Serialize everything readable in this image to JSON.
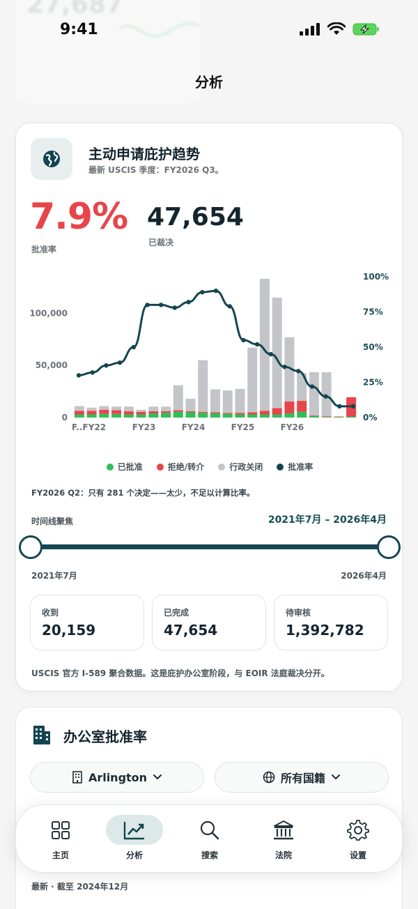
{
  "status_bar": {
    "time": "9:41"
  },
  "page_title": "分析",
  "trend_card": {
    "title": "主动申请庇护趋势",
    "subtitle": "最新 USCIS 季度：FY2026 Q3。",
    "approval_rate": "7.9%",
    "approval_rate_label": "批准率",
    "decided_count": "47,654",
    "decided_label": "已裁决",
    "note": "FY2026 Q2：只有 281 个决定——太少，不足以计算比率。",
    "timeline_label": "时间线聚焦",
    "timeline_range": "2021年7月 – 2026年4月",
    "slider_start": "2021年7月",
    "slider_end": "2026年4月",
    "stats": [
      {
        "label": "收到",
        "value": "20,159"
      },
      {
        "label": "已完成",
        "value": "47,654"
      },
      {
        "label": "待审核",
        "value": "1,392,782"
      }
    ],
    "footnote": "USCIS 官方 I-589 聚合数据。这是庇护办公室阶段，与 EOIR 法庭裁决分开。"
  },
  "chart_data": {
    "type": "bar",
    "x_tick_labels": [
      "F..FY22",
      "FY23",
      "FY24",
      "FY25",
      "FY26"
    ],
    "y_left_ticks": [
      "0",
      "50,000",
      "100,000"
    ],
    "y_right_ticks": [
      "0%",
      "25%",
      "50%",
      "75%",
      "100%"
    ],
    "ylim_left": [
      0,
      135000
    ],
    "ylim_right": [
      0,
      100
    ],
    "legend": [
      "已批准",
      "拒绝/转介",
      "行政关闭",
      "批准率"
    ],
    "colors": {
      "approved": "#2fbf57",
      "denied": "#e8454a",
      "closed": "#c3c5c8",
      "rate": "#14454f"
    },
    "series": [
      {
        "name": "已批准",
        "values": [
          3000,
          3000,
          3500,
          3500,
          3000,
          3000,
          4000,
          4500,
          5500,
          5000,
          4500,
          4000,
          3500,
          3000,
          3000,
          3000,
          3000,
          4000,
          5500,
          1500,
          500,
          500,
          1000
        ]
      },
      {
        "name": "拒绝/转介",
        "values": [
          3500,
          3500,
          4000,
          3500,
          3000,
          2500,
          2000,
          1500,
          1500,
          1000,
          1000,
          1000,
          1000,
          1500,
          2000,
          3500,
          6000,
          11500,
          10500,
          500,
          500,
          500,
          18500
        ]
      },
      {
        "name": "行政关闭",
        "values": [
          4500,
          3000,
          3500,
          3500,
          4500,
          2000,
          4500,
          4500,
          24000,
          12000,
          49500,
          22000,
          21500,
          23000,
          62000,
          126500,
          106000,
          61500,
          26500,
          41500,
          42500,
          0,
          0
        ]
      }
    ],
    "rate_series": {
      "name": "批准率",
      "values": [
        30,
        32,
        37,
        39,
        50,
        80,
        80,
        78,
        82,
        89,
        90,
        79,
        55,
        52,
        45,
        36,
        33,
        22,
        15,
        8,
        8
      ]
    }
  },
  "office_card": {
    "title": "办公室批准率",
    "office_select": "Arlington",
    "nationality_select": "所有国籍",
    "latest": "最新 · 截至 2024年12月"
  },
  "tab_bar": {
    "tabs": [
      {
        "label": "主页",
        "icon": "grid-icon"
      },
      {
        "label": "分析",
        "icon": "chart-trend-icon"
      },
      {
        "label": "搜索",
        "icon": "search-icon"
      },
      {
        "label": "法院",
        "icon": "courthouse-icon"
      },
      {
        "label": "设置",
        "icon": "gear-icon"
      }
    ],
    "active_index": 1
  }
}
